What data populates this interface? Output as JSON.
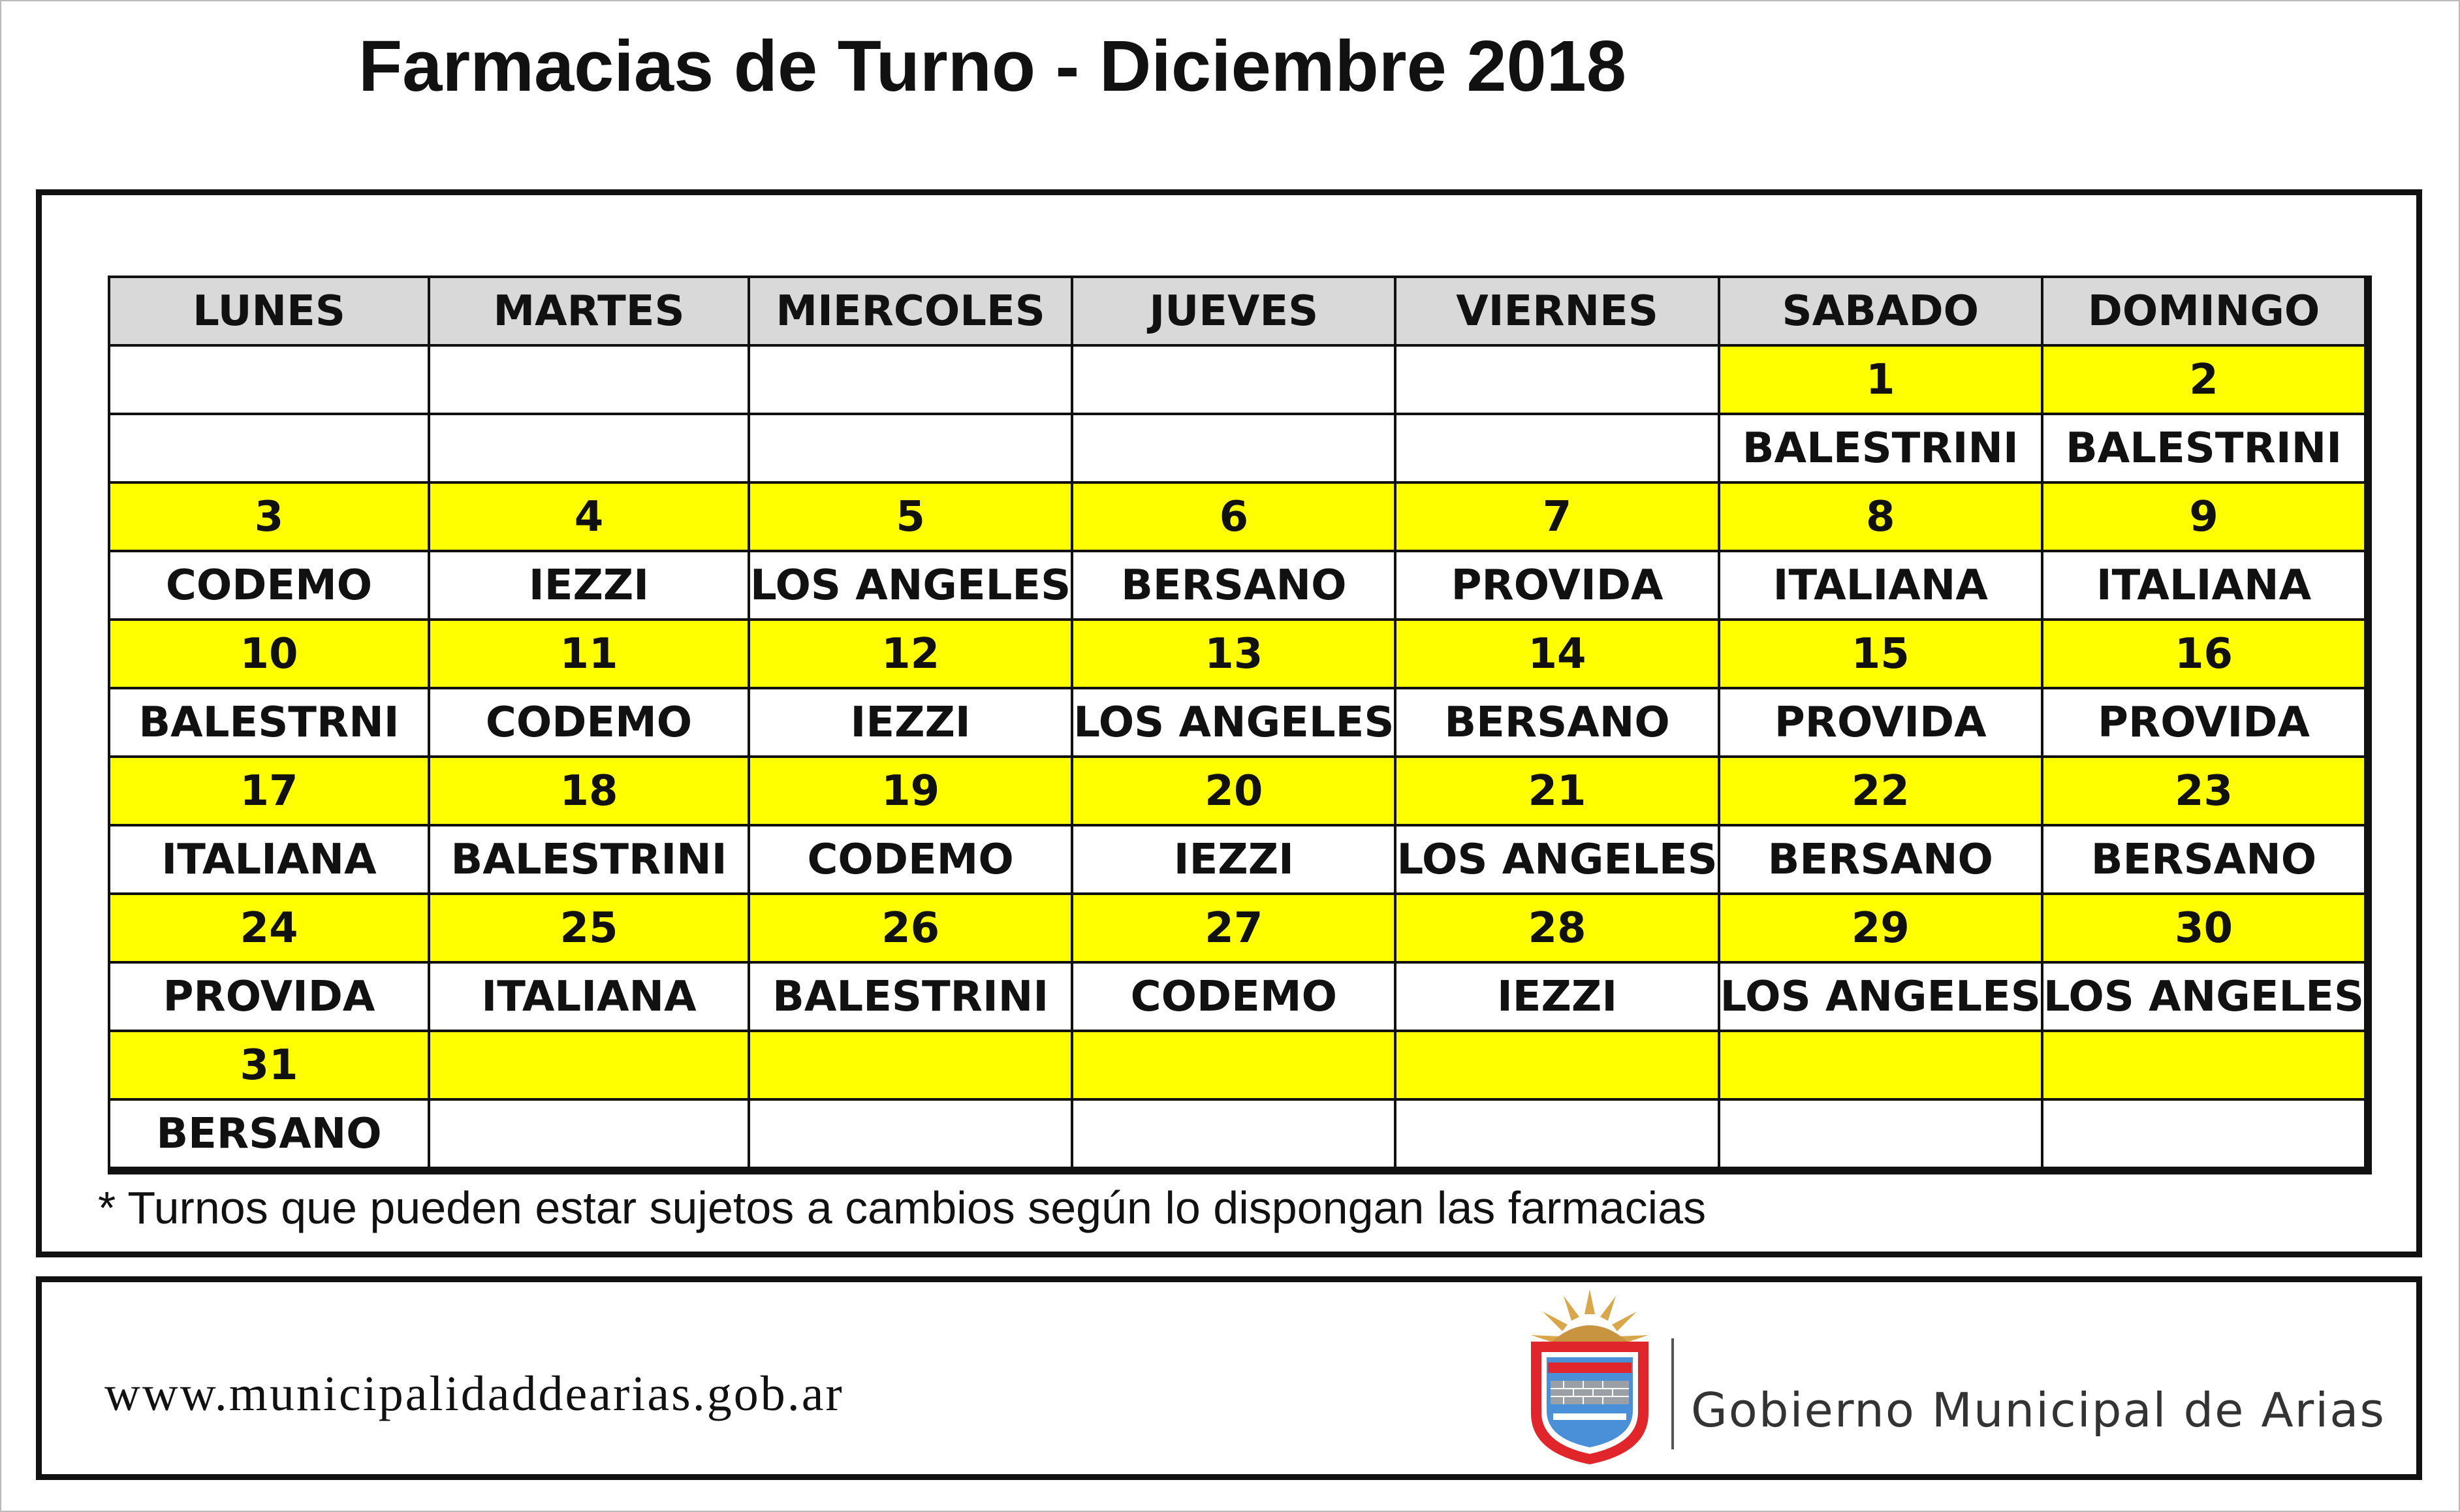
{
  "title": "Farmacias de Turno - Diciembre 2018",
  "weekdays": [
    "LUNES",
    "MARTES",
    "MIERCOLES",
    "JUEVES",
    "VIERNES",
    "SABADO",
    "DOMINGO"
  ],
  "weeks": [
    {
      "days": [
        "",
        "",
        "",
        "",
        "",
        "1",
        "2"
      ],
      "pharmacies": [
        "",
        "",
        "",
        "",
        "",
        "BALESTRINI",
        "BALESTRINI"
      ]
    },
    {
      "days": [
        "3",
        "4",
        "5",
        "6",
        "7",
        "8",
        "9"
      ],
      "pharmacies": [
        "CODEMO",
        "IEZZI",
        "LOS ANGELES",
        "BERSANO",
        "PROVIDA",
        "ITALIANA",
        "ITALIANA"
      ]
    },
    {
      "days": [
        "10",
        "11",
        "12",
        "13",
        "14",
        "15",
        "16"
      ],
      "pharmacies": [
        "BALESTRNI",
        "CODEMO",
        "IEZZI",
        "LOS ANGELES",
        "BERSANO",
        "PROVIDA",
        "PROVIDA"
      ]
    },
    {
      "days": [
        "17",
        "18",
        "19",
        "20",
        "21",
        "22",
        "23"
      ],
      "pharmacies": [
        "ITALIANA",
        "BALESTRINI",
        "CODEMO",
        "IEZZI",
        "LOS ANGELES",
        "BERSANO",
        "BERSANO"
      ]
    },
    {
      "days": [
        "24",
        "25",
        "26",
        "27",
        "28",
        "29",
        "30"
      ],
      "pharmacies": [
        "PROVIDA",
        "ITALIANA",
        "BALESTRINI",
        "CODEMO",
        "IEZZI",
        "LOS ANGELES",
        "LOS ANGELES"
      ]
    },
    {
      "days": [
        "31",
        "",
        "",
        "",
        "",
        "",
        ""
      ],
      "pharmacies": [
        "BERSANO",
        "",
        "",
        "",
        "",
        "",
        ""
      ]
    }
  ],
  "footnote": "* Turnos que pueden estar sujetos a cambios según lo dispongan las farmacias",
  "footer": {
    "website": "www.municipalidaddearias.gob.ar",
    "government": "Gobierno Municipal de Arias"
  },
  "colors": {
    "header_bg": "#d9d9d9",
    "day_row_bg": "#ffff00",
    "crest_red": "#e0262b",
    "crest_blue": "#4a90d9",
    "crest_sun": "#d9a74a"
  }
}
